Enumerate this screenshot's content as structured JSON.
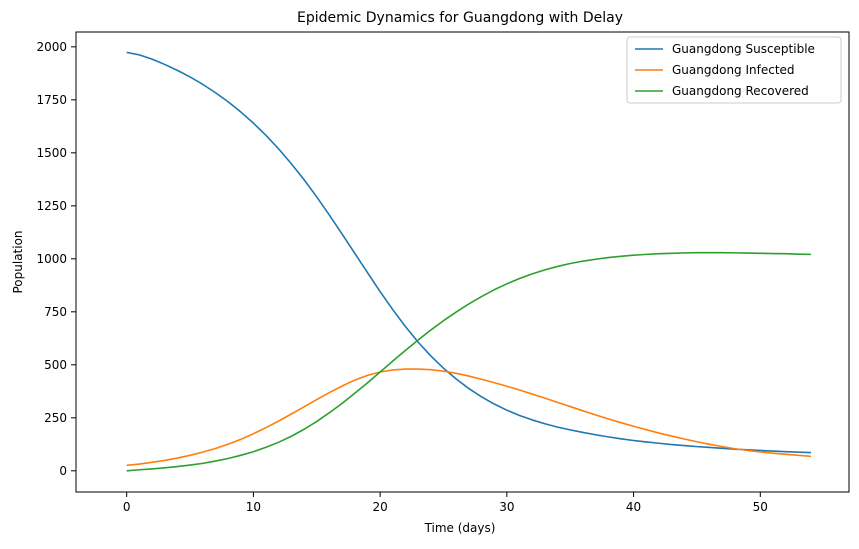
{
  "chart_data": {
    "type": "line",
    "title": "Epidemic Dynamics for Guangdong with Delay",
    "xlabel": "Time (days)",
    "ylabel": "Population",
    "xlim": [
      -4,
      57
    ],
    "ylim": [
      -100,
      2070
    ],
    "xticks": [
      0,
      10,
      20,
      30,
      40,
      50
    ],
    "yticks": [
      0,
      250,
      500,
      750,
      1000,
      1250,
      1500,
      1750,
      2000
    ],
    "grid": false,
    "legend_position": "top-right",
    "series": [
      {
        "name": "Guangdong Susceptible",
        "color": "#1f77b4",
        "x": [
          0,
          1,
          2,
          3,
          4,
          5,
          6,
          7,
          8,
          9,
          10,
          11,
          12,
          13,
          14,
          15,
          16,
          17,
          18,
          19,
          20,
          21,
          22,
          23,
          24,
          25,
          26,
          27,
          28,
          29,
          30,
          31,
          32,
          33,
          34,
          35,
          36,
          37,
          38,
          39,
          40,
          41,
          42,
          43,
          44,
          45,
          46,
          47,
          48,
          49,
          50,
          51,
          52,
          53,
          54
        ],
        "y": [
          1974,
          1962,
          1942,
          1917,
          1889,
          1858,
          1823,
          1784,
          1741,
          1693,
          1640,
          1582,
          1518,
          1448,
          1373,
          1292,
          1206,
          1117,
          1026,
          935,
          845,
          760,
          680,
          607,
          542,
          484,
          433,
          388,
          349,
          315,
          286,
          261,
          240,
          222,
          206,
          193,
          181,
          170,
          160,
          151,
          143,
          136,
          130,
          124,
          119,
          114,
          110,
          106,
          102,
          99,
          96,
          93,
          90,
          88,
          86
        ]
      },
      {
        "name": "Guangdong Infected",
        "color": "#ff7f0e",
        "x": [
          0,
          1,
          2,
          3,
          4,
          5,
          6,
          7,
          8,
          9,
          10,
          11,
          12,
          13,
          14,
          15,
          16,
          17,
          18,
          19,
          20,
          21,
          22,
          23,
          24,
          25,
          26,
          27,
          28,
          29,
          30,
          31,
          32,
          33,
          34,
          35,
          36,
          37,
          38,
          39,
          40,
          41,
          42,
          43,
          44,
          45,
          46,
          47,
          48,
          49,
          50,
          51,
          52,
          53,
          54
        ],
        "y": [
          26,
          32,
          40,
          49,
          60,
          73,
          88,
          105,
          125,
          148,
          175,
          204,
          235,
          268,
          302,
          336,
          369,
          400,
          428,
          450,
          466,
          476,
          480,
          480,
          477,
          470,
          460,
          447,
          432,
          416,
          399,
          381,
          362,
          343,
          323,
          303,
          283,
          264,
          245,
          227,
          210,
          194,
          178,
          164,
          150,
          137,
          125,
          114,
          104,
          96,
          89,
          83,
          78,
          73,
          68
        ]
      },
      {
        "name": "Guangdong Recovered",
        "color": "#2ca02c",
        "x": [
          0,
          1,
          2,
          3,
          4,
          5,
          6,
          7,
          8,
          9,
          10,
          11,
          12,
          13,
          14,
          15,
          16,
          17,
          18,
          19,
          20,
          21,
          22,
          23,
          24,
          25,
          26,
          27,
          28,
          29,
          30,
          31,
          32,
          33,
          34,
          35,
          36,
          37,
          38,
          39,
          40,
          41,
          42,
          43,
          44,
          45,
          46,
          47,
          48,
          49,
          50,
          51,
          52,
          53,
          54
        ],
        "y": [
          0,
          5,
          9,
          14,
          20,
          27,
          35,
          46,
          58,
          73,
          90,
          111,
          135,
          163,
          196,
          233,
          274,
          318,
          366,
          415,
          466,
          518,
          568,
          617,
          664,
          708,
          749,
          787,
          822,
          854,
          882,
          907,
          929,
          948,
          964,
          978,
          989,
          998,
          1006,
          1012,
          1017,
          1021,
          1024,
          1026,
          1028,
          1029,
          1029,
          1029,
          1028,
          1027,
          1026,
          1025,
          1024,
          1022,
          1021
        ]
      }
    ]
  }
}
